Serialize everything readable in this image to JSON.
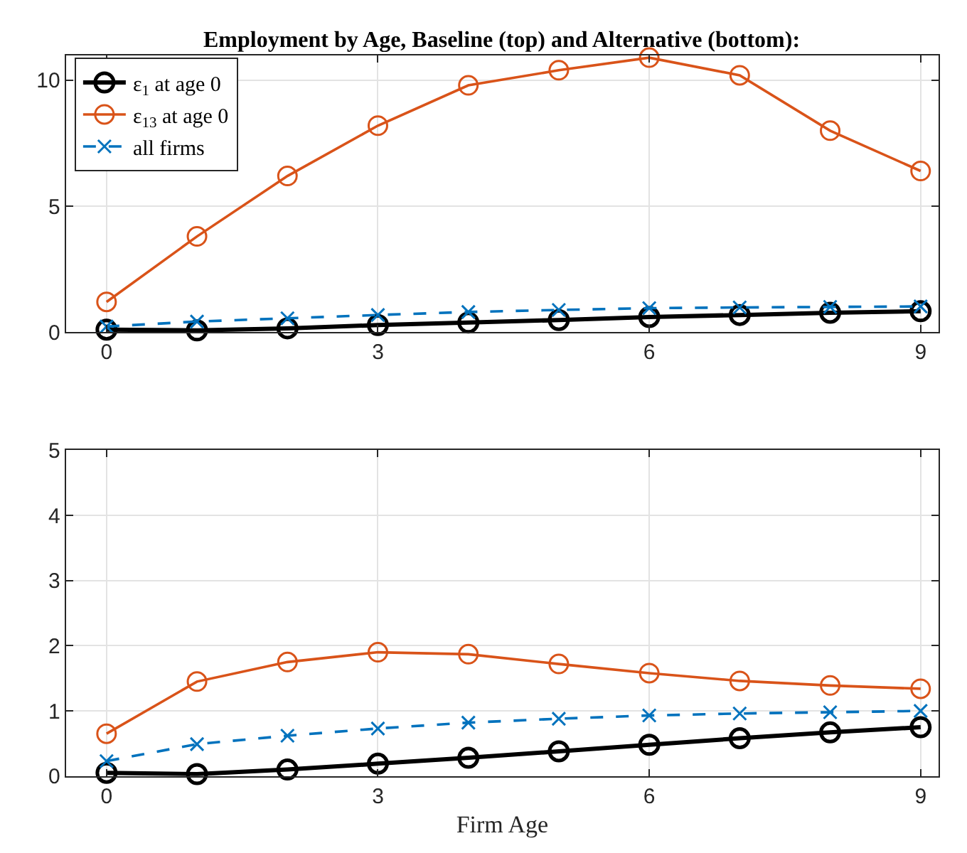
{
  "chart_data": [
    {
      "type": "line",
      "title": "Employment by Age, Baseline (top) and Alternative (bottom):",
      "x": [
        0,
        1,
        2,
        3,
        4,
        5,
        6,
        7,
        8,
        9
      ],
      "xlim": [
        -0.45,
        9.2
      ],
      "xticks": [
        0,
        3,
        6,
        9
      ],
      "ylim": [
        0,
        11
      ],
      "yticks": [
        0,
        5,
        10
      ],
      "grid": true,
      "legend": "top left",
      "series": [
        {
          "name": "ε$_{1}$ at age 0",
          "color": "#000000",
          "marker": "circle",
          "line_style": "solid",
          "values": [
            0.1,
            0.07,
            0.15,
            0.28,
            0.38,
            0.48,
            0.6,
            0.68,
            0.77,
            0.83
          ]
        },
        {
          "name": "ε$_{13}$ at age 0",
          "color": "#d95319",
          "marker": "circle",
          "line_style": "solid",
          "values": [
            1.2,
            3.8,
            6.2,
            8.2,
            9.8,
            10.4,
            10.9,
            10.2,
            8.0,
            6.4
          ]
        },
        {
          "name": "all firms",
          "color": "#0072bd",
          "marker": "cross",
          "line_style": "dashed",
          "values": [
            0.22,
            0.42,
            0.55,
            0.68,
            0.8,
            0.88,
            0.95,
            0.98,
            1.0,
            1.02
          ]
        }
      ]
    },
    {
      "type": "line",
      "xlabel": "Firm Age",
      "x": [
        0,
        1,
        2,
        3,
        4,
        5,
        6,
        7,
        8,
        9
      ],
      "xlim": [
        -0.45,
        9.2
      ],
      "xticks": [
        0,
        3,
        6,
        9
      ],
      "ylim": [
        0,
        5
      ],
      "yticks": [
        0,
        1,
        2,
        3,
        4,
        5
      ],
      "grid": true,
      "series": [
        {
          "color": "#000000",
          "marker": "circle",
          "line_style": "solid",
          "values": [
            0.05,
            0.03,
            0.1,
            0.19,
            0.28,
            0.38,
            0.48,
            0.58,
            0.67,
            0.75
          ]
        },
        {
          "color": "#d95319",
          "marker": "circle",
          "line_style": "solid",
          "values": [
            0.65,
            1.45,
            1.75,
            1.9,
            1.87,
            1.72,
            1.58,
            1.46,
            1.39,
            1.34
          ]
        },
        {
          "color": "#0072bd",
          "marker": "cross",
          "line_style": "dashed",
          "values": [
            0.23,
            0.49,
            0.62,
            0.73,
            0.82,
            0.88,
            0.93,
            0.96,
            0.98,
            1.0
          ]
        }
      ]
    }
  ]
}
